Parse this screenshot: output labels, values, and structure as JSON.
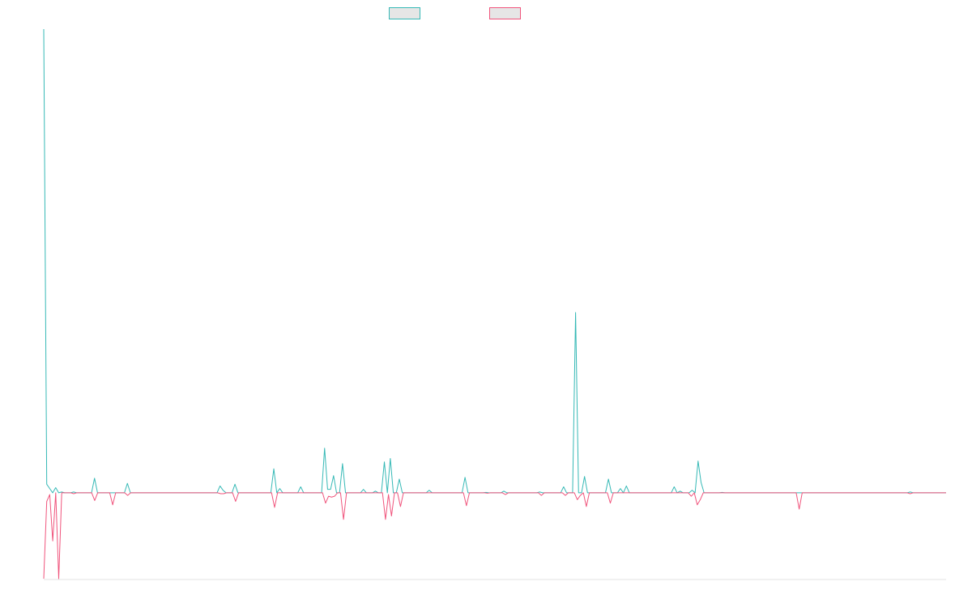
{
  "chart_data": {
    "type": "line",
    "title": "",
    "xlabel": "",
    "ylabel": "",
    "grid": false,
    "legend_position": "top-center",
    "ylim": [
      -10,
      54
    ],
    "series": [
      {
        "color": "#36b9b6",
        "values": [
          54,
          1,
          0.5,
          0,
          0.6,
          0,
          0.1,
          0,
          0,
          0,
          0.1,
          0,
          0,
          0,
          0,
          0,
          0,
          1.7,
          0,
          0,
          0,
          0,
          0,
          0,
          0,
          0,
          0,
          0,
          1.1,
          0,
          0,
          0,
          0,
          0,
          0,
          0,
          0,
          0,
          0,
          0,
          0,
          0,
          0,
          0,
          0,
          0,
          0,
          0,
          0,
          0,
          0,
          0,
          0,
          0,
          0,
          0,
          0,
          0,
          0,
          0.8,
          0.3,
          0,
          0,
          0,
          1,
          0,
          0,
          0,
          0,
          0,
          0,
          0,
          0,
          0,
          0,
          0,
          0,
          2.8,
          0,
          0.5,
          0,
          0,
          0,
          0,
          0,
          0,
          0.7,
          0,
          0,
          0,
          0,
          0,
          0,
          0,
          5.2,
          0.4,
          0.4,
          2,
          0,
          0,
          3.4,
          0,
          0,
          0,
          0,
          0,
          0,
          0.4,
          0,
          0,
          0,
          0.2,
          0,
          0,
          3.6,
          0,
          4,
          0,
          0,
          1.6,
          0,
          0,
          0,
          0,
          0,
          0,
          0,
          0,
          0,
          0.3,
          0,
          0,
          0,
          0,
          0,
          0,
          0,
          0,
          0,
          0,
          0,
          1.8,
          0,
          0,
          0,
          0,
          0,
          0,
          0.05,
          0,
          0,
          0,
          0,
          0,
          0.2,
          0,
          0,
          0,
          0,
          0,
          0,
          0,
          0,
          0,
          0,
          0,
          0.1,
          0,
          0,
          0,
          0,
          0,
          0,
          0,
          0.7,
          0,
          0,
          0,
          21,
          0,
          0,
          1.9,
          0,
          0,
          0,
          0,
          0,
          0,
          0,
          1.6,
          0,
          0,
          0,
          0.5,
          0,
          0.8,
          0,
          0,
          0,
          0,
          0,
          0,
          0,
          0,
          0,
          0,
          0,
          0,
          0,
          0,
          0,
          0.7,
          0,
          0.2,
          0,
          0,
          0,
          0.3,
          0,
          3.7,
          1.2,
          0,
          0,
          0,
          0,
          0,
          0,
          0.05,
          0,
          0,
          0,
          0,
          0,
          0,
          0,
          0,
          0,
          0,
          0,
          0,
          0,
          0,
          0,
          0,
          0,
          0,
          0,
          0,
          0,
          0,
          0,
          0,
          0,
          0,
          0,
          0,
          0,
          0,
          0,
          0,
          0,
          0,
          0,
          0,
          0,
          0,
          0,
          0,
          0,
          0,
          0,
          0,
          0,
          0,
          0,
          0,
          0,
          0,
          0,
          0,
          0,
          0,
          0,
          0,
          0,
          0,
          0,
          0,
          0,
          0,
          0.1,
          0,
          0,
          0,
          0,
          0,
          0,
          0,
          0,
          0,
          0,
          0,
          0
        ]
      },
      {
        "color": "#f0547c",
        "values": [
          -10,
          -1,
          -0.2,
          -5.6,
          0,
          -10,
          0,
          0,
          0,
          0,
          -0.1,
          0,
          0,
          0,
          0,
          0,
          0,
          -0.9,
          0,
          0,
          0,
          0,
          0,
          -1.4,
          0,
          0,
          0,
          0,
          -0.3,
          0,
          0,
          0,
          0,
          0,
          0,
          0,
          0,
          0,
          0,
          0,
          0,
          0,
          0,
          0,
          0,
          0,
          0,
          0,
          0,
          0,
          0,
          0,
          0,
          0,
          0,
          0,
          0,
          0,
          0,
          -0.1,
          -0.1,
          0,
          0,
          0,
          -1,
          0,
          0,
          0,
          0,
          0,
          0,
          0,
          0,
          0,
          0,
          0,
          0,
          -1.7,
          0,
          0,
          0,
          0,
          0,
          0,
          0,
          0,
          0,
          0,
          0,
          0,
          0,
          0,
          0,
          0,
          -1.2,
          -0.4,
          -0.5,
          -0.4,
          0,
          0,
          -3.1,
          0,
          0,
          0,
          0,
          0,
          0,
          0,
          0,
          0,
          0,
          0,
          0,
          0,
          -3.1,
          -0.2,
          -2.7,
          0,
          0,
          -1.6,
          0,
          0,
          0,
          0,
          0,
          0,
          0,
          0,
          0,
          0,
          0,
          0,
          0,
          0,
          0,
          0,
          0,
          0,
          0,
          0,
          0,
          -1.5,
          0,
          0,
          0,
          0,
          0,
          0,
          -0.05,
          0,
          0,
          0,
          0,
          0,
          -0.2,
          0,
          0,
          0,
          0,
          0,
          0,
          0,
          0,
          0,
          0,
          0,
          -0.3,
          0,
          0,
          0,
          0,
          0,
          0,
          0,
          -0.3,
          0,
          0,
          0,
          -0.8,
          -0.3,
          0,
          -1.6,
          0,
          0,
          0,
          0,
          0,
          0,
          0,
          -1.2,
          0,
          0,
          0,
          0,
          0,
          0,
          0,
          0,
          0,
          0,
          0,
          0,
          0,
          0,
          0,
          0,
          0,
          0,
          0,
          0,
          0,
          0,
          0,
          0,
          0,
          0,
          -0.4,
          0,
          -1.4,
          -0.8,
          0,
          0,
          0,
          0,
          0,
          0,
          0,
          0,
          0,
          0,
          0,
          0,
          0,
          0,
          0,
          0,
          0,
          0,
          0,
          0,
          0,
          0,
          0,
          0,
          0,
          0,
          0,
          0,
          0,
          0,
          0,
          0,
          -1.9,
          0,
          0,
          0,
          0,
          0,
          0,
          0,
          0,
          0,
          0,
          0,
          0,
          0,
          0,
          0,
          0,
          0,
          0,
          0,
          0,
          0,
          0,
          0,
          0,
          0,
          0,
          0,
          0,
          0,
          0,
          0,
          0,
          0,
          0,
          0,
          0,
          -0.1,
          0,
          0,
          0,
          0,
          0,
          0,
          0,
          0,
          0,
          0,
          0,
          0
        ]
      }
    ]
  }
}
